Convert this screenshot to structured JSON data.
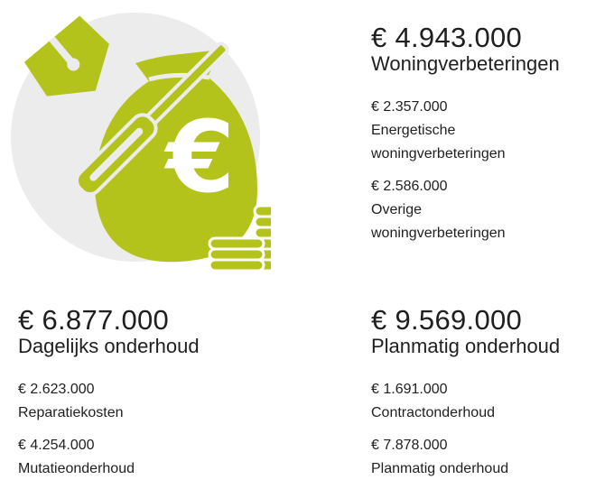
{
  "blocks": [
    {
      "total": "€ 4.943.000",
      "title": "Woningverbeteringen",
      "items": [
        {
          "amount": "€ 2.357.000",
          "label": "Energetische woningverbeteringen"
        },
        {
          "amount": "€ 2.586.000",
          "label": "Overige woningverbeteringen"
        }
      ]
    },
    {
      "total": "€ 6.877.000",
      "title": "Dagelijks onderhoud",
      "items": [
        {
          "amount": "€ 2.623.000",
          "label": "Reparatiekosten"
        },
        {
          "amount": "€ 4.254.000",
          "label": "Mutatieonderhoud"
        }
      ]
    },
    {
      "total": "€ 9.569.000",
      "title": "Planmatig onderhoud",
      "items": [
        {
          "amount": "€ 1.691.000",
          "label": "Contractonderhoud"
        },
        {
          "amount": "€ 7.878.000",
          "label": "Planmatig onderhoud"
        }
      ]
    }
  ]
}
